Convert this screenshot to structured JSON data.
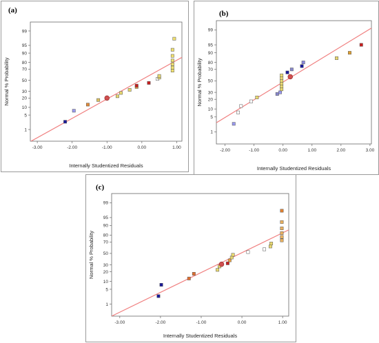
{
  "chart_data": [
    {
      "type": "scatter",
      "panel_label": "(a)",
      "xlabel": "Internally Studentized Residuals",
      "ylabel": "Normal % Probability",
      "x_ticks": [
        "-3.00",
        "-2.00",
        "-1.00",
        "0.00",
        "1.00"
      ],
      "y_ticks": [
        "1",
        "5",
        "10",
        "20",
        "30",
        "50",
        "70",
        "80",
        "90",
        "95",
        "99"
      ],
      "xlim": [
        -3.2,
        1.15
      ],
      "y_scale": "normal-probability",
      "ylim": [
        0.2,
        99.7
      ],
      "reference_line": {
        "color": "#f08080",
        "points": [
          [
            -3.3,
            0.14
          ],
          [
            1.15,
            86.0
          ]
        ]
      },
      "grid": false,
      "points": [
        {
          "x": -2.2,
          "y": 2.5,
          "color": "#1a1a9a"
        },
        {
          "x": -1.95,
          "y": 7.5,
          "color": "#9999ee"
        },
        {
          "x": -1.55,
          "y": 12.5,
          "color": "#e08a3a"
        },
        {
          "x": -1.25,
          "y": 17.5,
          "color": "#dcc060"
        },
        {
          "x": -1.0,
          "y": 20,
          "color": "#d05050",
          "marker": "circle"
        },
        {
          "x": -0.7,
          "y": 22.5,
          "color": "#e8d870"
        },
        {
          "x": -0.6,
          "y": 27.5,
          "color": "#e8d870"
        },
        {
          "x": -0.35,
          "y": 32.5,
          "color": "#e8d870"
        },
        {
          "x": -0.15,
          "y": 37.5,
          "color": "#e8a040"
        },
        {
          "x": -0.15,
          "y": 40,
          "color": "#c81e1e"
        },
        {
          "x": 0.2,
          "y": 45,
          "color": "#c81e1e"
        },
        {
          "x": 0.45,
          "y": 52.5,
          "color": "#ffffff"
        },
        {
          "x": 0.5,
          "y": 55,
          "color": "#e8d870"
        },
        {
          "x": 0.5,
          "y": 58,
          "color": "#e8d870"
        },
        {
          "x": 0.88,
          "y": 67.5,
          "color": "#f0e070"
        },
        {
          "x": 0.88,
          "y": 72.5,
          "color": "#f0e070"
        },
        {
          "x": 0.88,
          "y": 77.5,
          "color": "#f0e070"
        },
        {
          "x": 0.88,
          "y": 82.5,
          "color": "#f0e070"
        },
        {
          "x": 0.88,
          "y": 87.5,
          "color": "#f0e070"
        },
        {
          "x": 0.88,
          "y": 92.5,
          "color": "#f0e070"
        },
        {
          "x": 0.93,
          "y": 97.5,
          "color": "#f0e070"
        }
      ]
    },
    {
      "type": "scatter",
      "panel_label": "(b)",
      "xlabel": "Internally Studentized Residuals",
      "ylabel": "Normal % Probability",
      "x_ticks": [
        "-2.00",
        "-1.00",
        "0.00",
        "1.00",
        "2.00",
        "3.00"
      ],
      "y_ticks": [
        "1",
        "5",
        "10",
        "20",
        "30",
        "50",
        "70",
        "80",
        "90",
        "95",
        "99"
      ],
      "xlim": [
        -2.3,
        3.05
      ],
      "y_scale": "normal-probability",
      "ylim": [
        0.2,
        99.7
      ],
      "reference_line": {
        "color": "#f08080",
        "points": [
          [
            -2.3,
            2.8
          ],
          [
            3.05,
            99.2
          ]
        ]
      },
      "grid": false,
      "points": [
        {
          "x": -1.7,
          "y": 2.5,
          "color": "#9999ee"
        },
        {
          "x": -1.55,
          "y": 7.5,
          "color": "#ffffff"
        },
        {
          "x": -1.45,
          "y": 12.5,
          "color": "#ffffff"
        },
        {
          "x": -1.1,
          "y": 17.5,
          "color": "#ffffff"
        },
        {
          "x": -0.9,
          "y": 22.5,
          "color": "#e8d870"
        },
        {
          "x": -0.2,
          "y": 27.5,
          "color": "#8888cc"
        },
        {
          "x": -0.1,
          "y": 30,
          "color": "#9999ee"
        },
        {
          "x": -0.05,
          "y": 35,
          "color": "#e8d870"
        },
        {
          "x": -0.05,
          "y": 40,
          "color": "#e8d870"
        },
        {
          "x": -0.05,
          "y": 45,
          "color": "#e8d870"
        },
        {
          "x": -0.05,
          "y": 50,
          "color": "#e8d870"
        },
        {
          "x": -0.05,
          "y": 55,
          "color": "#e8d870"
        },
        {
          "x": -0.05,
          "y": 60,
          "color": "#e8d870"
        },
        {
          "x": 0.25,
          "y": 57.5,
          "color": "#d05050",
          "marker": "circle"
        },
        {
          "x": 0.15,
          "y": 65,
          "color": "#1a1a9a"
        },
        {
          "x": 0.3,
          "y": 70,
          "color": "#8888cc"
        },
        {
          "x": 0.65,
          "y": 75,
          "color": "#1a1a9a"
        },
        {
          "x": 0.7,
          "y": 80,
          "color": "#8888dd"
        },
        {
          "x": 1.85,
          "y": 85,
          "color": "#e8d870"
        },
        {
          "x": 2.3,
          "y": 90,
          "color": "#e0a030"
        },
        {
          "x": 2.7,
          "y": 95,
          "color": "#c81e1e"
        }
      ]
    },
    {
      "type": "scatter",
      "panel_label": "(c)",
      "xlabel": "Internally Studentized Residuals",
      "ylabel": "Normal % Probability",
      "x_ticks": [
        "-3.00",
        "-2.00",
        "-1.00",
        "0.00",
        "1.00"
      ],
      "y_ticks": [
        "1",
        "5",
        "10",
        "20",
        "30",
        "50",
        "70",
        "80",
        "90",
        "95",
        "99"
      ],
      "xlim": [
        -3.2,
        1.15
      ],
      "y_scale": "normal-probability",
      "ylim": [
        0.2,
        99.7
      ],
      "reference_line": {
        "color": "#f08080",
        "points": [
          [
            -3.2,
            0.2
          ],
          [
            1.15,
            86.0
          ]
        ]
      },
      "grid": false,
      "points": [
        {
          "x": -2.05,
          "y": 2.5,
          "color": "#1a1a9a"
        },
        {
          "x": -1.98,
          "y": 7.5,
          "color": "#1a1a9a"
        },
        {
          "x": -1.3,
          "y": 12.5,
          "color": "#e07030"
        },
        {
          "x": -1.18,
          "y": 17.5,
          "color": "#e07030"
        },
        {
          "x": -0.6,
          "y": 22.5,
          "color": "#e8d870"
        },
        {
          "x": -0.55,
          "y": 27.5,
          "color": "#e8d870"
        },
        {
          "x": -0.5,
          "y": 31,
          "color": "#d05050",
          "marker": "circle"
        },
        {
          "x": -0.35,
          "y": 32.5,
          "color": "#c81e1e"
        },
        {
          "x": -0.3,
          "y": 37.5,
          "color": "#e8a040"
        },
        {
          "x": -0.25,
          "y": 42.5,
          "color": "#e8d870"
        },
        {
          "x": -0.22,
          "y": 47.5,
          "color": "#e8d870"
        },
        {
          "x": 0.15,
          "y": 52.5,
          "color": "#ffffff"
        },
        {
          "x": 0.55,
          "y": 57.5,
          "color": "#ffffff"
        },
        {
          "x": 0.7,
          "y": 62.5,
          "color": "#e8d870"
        },
        {
          "x": 0.72,
          "y": 67.5,
          "color": "#e8d870"
        },
        {
          "x": 0.98,
          "y": 72.5,
          "color": "#e8b060"
        },
        {
          "x": 0.98,
          "y": 77.5,
          "color": "#e8b060"
        },
        {
          "x": 0.98,
          "y": 82.5,
          "color": "#e8b060"
        },
        {
          "x": 0.98,
          "y": 87.5,
          "color": "#e8b060"
        },
        {
          "x": 0.98,
          "y": 92.5,
          "color": "#e8b060"
        },
        {
          "x": 0.98,
          "y": 97.5,
          "color": "#e08030"
        }
      ]
    }
  ]
}
